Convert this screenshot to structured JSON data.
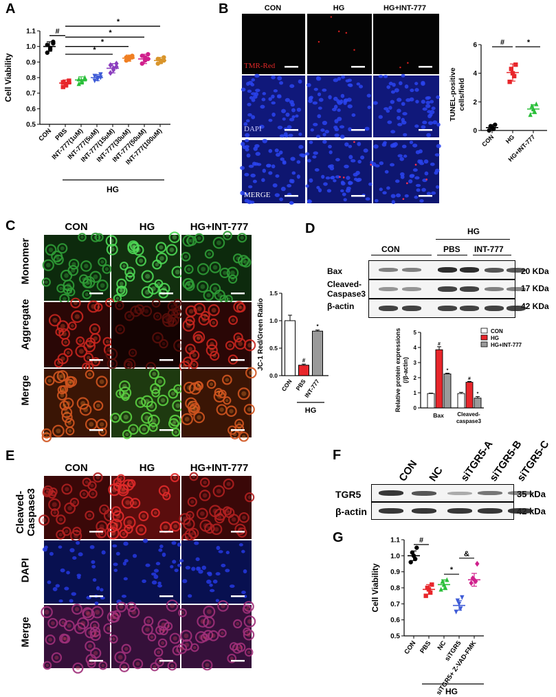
{
  "panels": {
    "A": "A",
    "B": "B",
    "C": "C",
    "D": "D",
    "E": "E",
    "F": "F",
    "G": "G"
  },
  "colors": {
    "red": "#e8262b",
    "green": "#2bbf3a",
    "blue": "#3e5bd6",
    "purple": "#8c3fbf",
    "orange": "#f07f22",
    "magenta": "#d0208c",
    "gold": "#d9952b",
    "black": "#000000",
    "gray": "#9a9a9a",
    "tmr_bg": "#050505",
    "dapi_blue": "#1830c8",
    "jc_green": "#3cb843",
    "jc_red": "#c8261f"
  },
  "panel_a": {
    "chart_data": {
      "type": "scatter",
      "categories": [
        "CON",
        "PBS",
        "INT-777(1uM)",
        "INT-777(5uM)",
        "INT-777(15uM)",
        "INT-777(30uM)",
        "INT-777(50uM)",
        "INT-777(100uM)"
      ],
      "series": [
        {
          "mean": 1.0,
          "sd": 0.03,
          "points": [
            1.03,
            1.01,
            0.99,
            0.98,
            0.96,
            1.02
          ],
          "color": "#000000"
        },
        {
          "mean": 0.765,
          "sd": 0.02,
          "points": [
            0.78,
            0.77,
            0.76,
            0.75,
            0.74,
            0.77
          ],
          "color": "#e8262b"
        },
        {
          "mean": 0.785,
          "sd": 0.02,
          "points": [
            0.8,
            0.79,
            0.78,
            0.77,
            0.76,
            0.79
          ],
          "color": "#2bbf3a"
        },
        {
          "mean": 0.8,
          "sd": 0.02,
          "points": [
            0.82,
            0.81,
            0.8,
            0.79,
            0.78,
            0.8
          ],
          "color": "#3e5bd6"
        },
        {
          "mean": 0.86,
          "sd": 0.03,
          "points": [
            0.89,
            0.88,
            0.86,
            0.85,
            0.83,
            0.87
          ],
          "color": "#8c3fbf"
        },
        {
          "mean": 0.925,
          "sd": 0.02,
          "points": [
            0.94,
            0.93,
            0.93,
            0.92,
            0.91,
            0.93
          ],
          "color": "#f07f22"
        },
        {
          "mean": 0.92,
          "sd": 0.03,
          "points": [
            0.95,
            0.94,
            0.93,
            0.91,
            0.89,
            0.92
          ],
          "color": "#d0208c"
        },
        {
          "mean": 0.91,
          "sd": 0.02,
          "points": [
            0.93,
            0.92,
            0.91,
            0.9,
            0.89,
            0.91
          ],
          "color": "#d9952b"
        }
      ],
      "ylabel": "Cell Viability",
      "ylim": [
        0.5,
        1.1
      ],
      "yticks": [
        "0.5",
        "0.6",
        "0.7",
        "0.8",
        "0.9",
        "1.0",
        "1.1"
      ],
      "group_label": "HG",
      "sig": [
        "#",
        "*",
        "*",
        "*",
        "*"
      ]
    }
  },
  "panel_b": {
    "columns": [
      "CON",
      "HG",
      "HG+INT-777"
    ],
    "rows": [
      "TMR-Red",
      "DAPI",
      "MERGE"
    ],
    "chart_data": {
      "type": "scatter",
      "categories": [
        "CON",
        "HG",
        "HG+INT-777"
      ],
      "series": [
        {
          "mean": 0.2,
          "sd": 0.2,
          "points": [
            0.4,
            0.3,
            0.2,
            0.1,
            0.0
          ],
          "color": "#000000"
        },
        {
          "mean": 4.05,
          "sd": 0.6,
          "points": [
            4.6,
            4.3,
            4.0,
            3.8,
            3.4
          ],
          "color": "#e8262b"
        },
        {
          "mean": 1.5,
          "sd": 0.3,
          "points": [
            1.85,
            1.7,
            1.5,
            1.3,
            1.1
          ],
          "color": "#2bbf3a"
        }
      ],
      "ylabel": "TUNEL-positive cells/field",
      "ylim": [
        0,
        6
      ],
      "yticks": [
        "0",
        "2",
        "4",
        "6"
      ],
      "sig": [
        "#",
        "*"
      ]
    }
  },
  "panel_c": {
    "columns": [
      "CON",
      "HG",
      "HG+INT-777"
    ],
    "rows": [
      "Monomer",
      "Aggregate",
      "Merge"
    ],
    "chart_data": {
      "type": "bar",
      "categories": [
        "CON",
        "PBS",
        "INT-777"
      ],
      "values": [
        1.0,
        0.19,
        0.81
      ],
      "errors": [
        0.1,
        0.02,
        0.02
      ],
      "colors": [
        "#ffffff",
        "#e8262b",
        "#9a9a9a"
      ],
      "ylabel": "JC-1 Red/Green Radio",
      "ylim": [
        0,
        1.5
      ],
      "yticks": [
        "0.0",
        "0.5",
        "1.0",
        "1.5"
      ],
      "group_label": "HG",
      "sig": [
        "#",
        "*"
      ]
    }
  },
  "panel_d": {
    "group_label": "HG",
    "lane_groups": [
      "CON",
      "PBS",
      "INT-777"
    ],
    "blots": [
      {
        "label": "Bax",
        "size": "20 KDa"
      },
      {
        "label": "Cleaved-\nCaspase3",
        "label1": "Cleaved-",
        "label2": "Caspase3",
        "size": "17 KDa"
      },
      {
        "label": "β-actin",
        "size": "42 KDa"
      }
    ],
    "chart_data": {
      "type": "bar",
      "categories": [
        "Bax",
        "Cleaved-caspase3"
      ],
      "series": [
        {
          "name": "CON",
          "values": [
            0.95,
            0.95
          ],
          "errors": [
            0.03,
            0.08
          ],
          "color": "#ffffff"
        },
        {
          "name": "HG",
          "values": [
            3.85,
            1.7
          ],
          "errors": [
            0.2,
            0.05
          ],
          "color": "#e8262b"
        },
        {
          "name": "HG+INT-777",
          "values": [
            2.25,
            0.65
          ],
          "errors": [
            0.05,
            0.1
          ],
          "color": "#9a9a9a"
        }
      ],
      "ylabel1": "Relative protein expressions",
      "ylabel2": "(/β-actin)",
      "ylim": [
        0,
        5
      ],
      "yticks": [
        "0",
        "1",
        "2",
        "3",
        "4",
        "5"
      ],
      "sig": [
        "#",
        "*",
        "#",
        "*"
      ]
    }
  },
  "panel_e": {
    "columns": [
      "CON",
      "HG",
      "HG+INT-777"
    ],
    "rows": [
      "Cleaved-\nCaspase3",
      "DAPI",
      "Merge"
    ],
    "row1_line1": "Cleaved-",
    "row1_line2": "Caspase3"
  },
  "panel_f": {
    "lanes": [
      "CON",
      "NC",
      "siTGR5-A",
      "siTGR5-B",
      "siTGR5-C"
    ],
    "blots": [
      {
        "label": "TGR5",
        "size": "35 kDa"
      },
      {
        "label": "β-actin",
        "size": "42 kDa"
      }
    ]
  },
  "panel_g": {
    "chart_data": {
      "type": "scatter",
      "categories": [
        "CON",
        "PBS",
        "NC",
        "siTGR5",
        "siTGR5+ Z-VAD-FMK"
      ],
      "series": [
        {
          "mean": 1.0,
          "sd": 0.03,
          "points": [
            1.05,
            1.02,
            1.0,
            0.98,
            0.96
          ],
          "color": "#000000"
        },
        {
          "mean": 0.79,
          "sd": 0.03,
          "points": [
            0.82,
            0.8,
            0.79,
            0.77,
            0.75
          ],
          "color": "#e8262b"
        },
        {
          "mean": 0.82,
          "sd": 0.03,
          "points": [
            0.85,
            0.84,
            0.82,
            0.8,
            0.79
          ],
          "color": "#2bbf3a"
        },
        {
          "mean": 0.69,
          "sd": 0.03,
          "points": [
            0.74,
            0.72,
            0.7,
            0.67,
            0.65
          ],
          "color": "#3e5bd6"
        },
        {
          "mean": 0.85,
          "sd": 0.04,
          "points": [
            0.95,
            0.86,
            0.85,
            0.84,
            0.83
          ],
          "color": "#d0208c"
        }
      ],
      "ylabel": "Cell Viability",
      "ylim": [
        0.5,
        1.1
      ],
      "yticks": [
        "0.5",
        "0.6",
        "0.7",
        "0.8",
        "0.9",
        "1.0",
        "1.1"
      ],
      "group_label": "HG",
      "sig": [
        "#",
        "*",
        "&"
      ]
    }
  }
}
